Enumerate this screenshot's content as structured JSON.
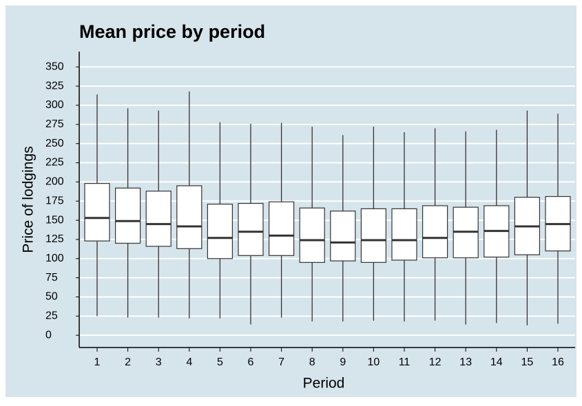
{
  "chart_data": {
    "type": "box",
    "title": "Mean price by period",
    "xlabel": "Period",
    "ylabel": "Price of lodgings",
    "categories": [
      "1",
      "2",
      "3",
      "4",
      "5",
      "6",
      "7",
      "8",
      "9",
      "10",
      "11",
      "12",
      "13",
      "14",
      "15",
      "16"
    ],
    "boxes": [
      {
        "low": 25,
        "q1": 123,
        "median": 153,
        "q3": 198,
        "high": 314
      },
      {
        "low": 23,
        "q1": 120,
        "median": 149,
        "q3": 192,
        "high": 296
      },
      {
        "low": 23,
        "q1": 116,
        "median": 145,
        "q3": 188,
        "high": 293
      },
      {
        "low": 22,
        "q1": 113,
        "median": 142,
        "q3": 195,
        "high": 318
      },
      {
        "low": 22,
        "q1": 100,
        "median": 127,
        "q3": 171,
        "high": 278
      },
      {
        "low": 14,
        "q1": 104,
        "median": 135,
        "q3": 172,
        "high": 276
      },
      {
        "low": 23,
        "q1": 104,
        "median": 130,
        "q3": 174,
        "high": 277
      },
      {
        "low": 18,
        "q1": 95,
        "median": 124,
        "q3": 166,
        "high": 272
      },
      {
        "low": 18,
        "q1": 97,
        "median": 121,
        "q3": 162,
        "high": 261
      },
      {
        "low": 19,
        "q1": 95,
        "median": 124,
        "q3": 165,
        "high": 272
      },
      {
        "low": 18,
        "q1": 98,
        "median": 124,
        "q3": 165,
        "high": 265
      },
      {
        "low": 19,
        "q1": 101,
        "median": 127,
        "q3": 169,
        "high": 270
      },
      {
        "low": 14,
        "q1": 101,
        "median": 135,
        "q3": 167,
        "high": 266
      },
      {
        "low": 16,
        "q1": 102,
        "median": 136,
        "q3": 169,
        "high": 268
      },
      {
        "low": 13,
        "q1": 105,
        "median": 142,
        "q3": 180,
        "high": 293
      },
      {
        "low": 15,
        "q1": 110,
        "median": 145,
        "q3": 181,
        "high": 289
      }
    ],
    "ylim": [
      -16,
      370
    ],
    "yticks": [
      0,
      25,
      50,
      75,
      100,
      125,
      150,
      175,
      200,
      225,
      250,
      275,
      300,
      325,
      350
    ],
    "grid": true,
    "box_color": "#ffffff",
    "background": "#d6e4ec"
  }
}
